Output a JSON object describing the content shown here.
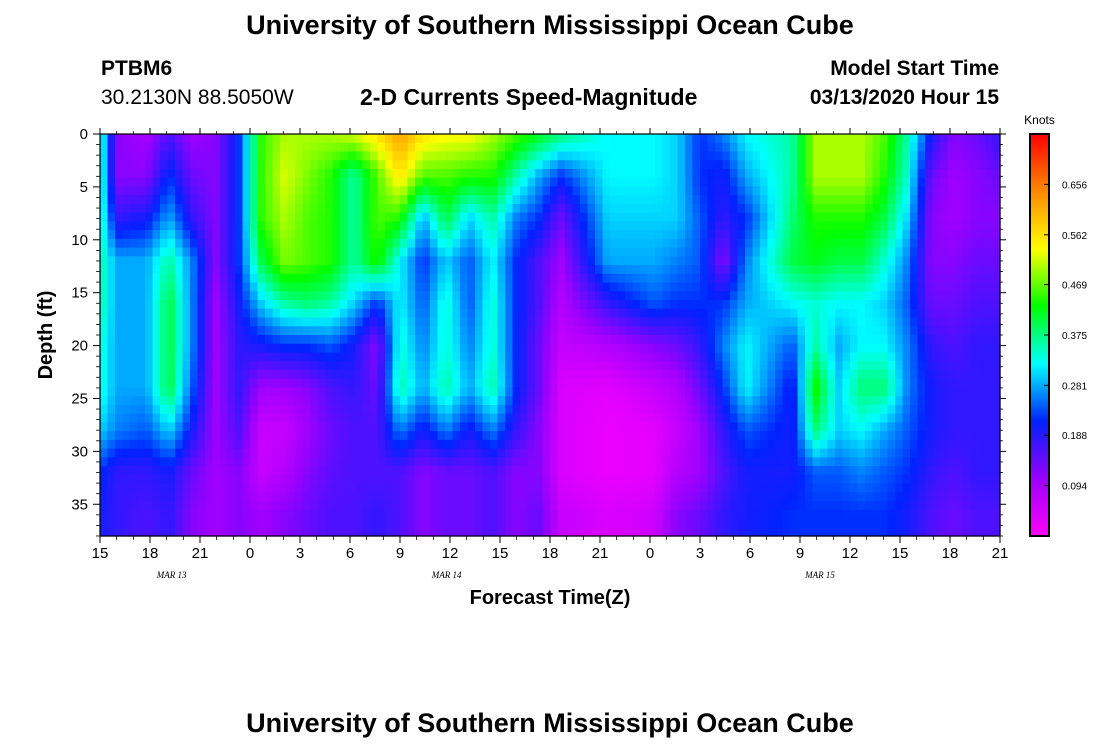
{
  "header": {
    "title": "University of Southern Mississippi Ocean Cube",
    "station": "PTBM6",
    "coords": "30.2130N 88.5050W",
    "subtitle": "2-D Currents Speed-Magnitude",
    "model_start_label": "Model Start Time",
    "model_start_value": "03/13/2020 Hour 15"
  },
  "footer": {
    "title": "University of Southern Mississippi Ocean Cube"
  },
  "chart_data": {
    "type": "heatmap",
    "xlabel": "Forecast Time(Z)",
    "ylabel": "Depth (ft)",
    "x_hours_range": [
      0,
      54
    ],
    "y_range": [
      0,
      38
    ],
    "x_tick_labels": [
      "15",
      "18",
      "21",
      "0",
      "3",
      "6",
      "9",
      "12",
      "15",
      "18",
      "21",
      "0",
      "3",
      "6",
      "9",
      "12",
      "15",
      "18",
      "21"
    ],
    "y_ticks": [
      0,
      5,
      10,
      15,
      20,
      25,
      30,
      35
    ],
    "day_labels": [
      {
        "label": "MAR 13",
        "hour": 4.3
      },
      {
        "label": "MAR 14",
        "hour": 20.8
      },
      {
        "label": "MAR 15",
        "hour": 43.2
      }
    ],
    "colorbar": {
      "unit": "Knots",
      "min": 0,
      "max": 0.75,
      "tick_labels": [
        "0.094",
        "0.188",
        "0.281",
        "0.375",
        "0.469",
        "0.562",
        "0.656"
      ],
      "tick_values": [
        0.094,
        0.188,
        0.281,
        0.375,
        0.469,
        0.562,
        0.656
      ],
      "colors": [
        "#ff00ff",
        "#9900ff",
        "#0022ff",
        "#00ffff",
        "#00ff00",
        "#ffff00",
        "#ff8800",
        "#ff0000"
      ]
    },
    "depths": [
      0,
      4,
      8,
      12,
      16,
      20,
      24,
      28,
      32,
      36,
      38
    ],
    "columns": [
      {
        "t": 0,
        "v": [
          0.36,
          0.36,
          0.36,
          0.36,
          0.36,
          0.34,
          0.34,
          0.3,
          0.22,
          0.2,
          0.2
        ]
      },
      {
        "t": 0.7,
        "v": [
          0.12,
          0.12,
          0.18,
          0.28,
          0.28,
          0.28,
          0.28,
          0.26,
          0.18,
          0.18,
          0.18
        ]
      },
      {
        "t": 2,
        "v": [
          0.09,
          0.12,
          0.2,
          0.28,
          0.28,
          0.28,
          0.28,
          0.24,
          0.18,
          0.16,
          0.16
        ]
      },
      {
        "t": 3,
        "v": [
          0.16,
          0.22,
          0.28,
          0.36,
          0.4,
          0.4,
          0.4,
          0.3,
          0.2,
          0.18,
          0.18
        ]
      },
      {
        "t": 4,
        "v": [
          0.1,
          0.14,
          0.18,
          0.26,
          0.26,
          0.26,
          0.24,
          0.2,
          0.14,
          0.12,
          0.12
        ]
      },
      {
        "t": 5,
        "v": [
          0.12,
          0.12,
          0.12,
          0.12,
          0.1,
          0.1,
          0.1,
          0.1,
          0.1,
          0.1,
          0.1
        ]
      },
      {
        "t": 6,
        "v": [
          0.22,
          0.22,
          0.22,
          0.22,
          0.2,
          0.18,
          0.18,
          0.16,
          0.12,
          0.12,
          0.12
        ]
      },
      {
        "t": 7,
        "v": [
          0.45,
          0.45,
          0.45,
          0.4,
          0.3,
          0.2,
          0.1,
          0.06,
          0.06,
          0.1,
          0.1
        ]
      },
      {
        "t": 8,
        "v": [
          0.5,
          0.52,
          0.5,
          0.48,
          0.36,
          0.22,
          0.1,
          0.06,
          0.08,
          0.12,
          0.12
        ]
      },
      {
        "t": 9,
        "v": [
          0.5,
          0.48,
          0.46,
          0.46,
          0.38,
          0.22,
          0.12,
          0.1,
          0.12,
          0.14,
          0.14
        ]
      },
      {
        "t": 10,
        "v": [
          0.5,
          0.44,
          0.44,
          0.44,
          0.36,
          0.24,
          0.16,
          0.14,
          0.15,
          0.16,
          0.16
        ]
      },
      {
        "t": 11,
        "v": [
          0.52,
          0.36,
          0.36,
          0.36,
          0.3,
          0.2,
          0.18,
          0.16,
          0.16,
          0.16,
          0.16
        ]
      },
      {
        "t": 12,
        "v": [
          0.56,
          0.46,
          0.46,
          0.44,
          0.22,
          0.12,
          0.14,
          0.16,
          0.16,
          0.18,
          0.18
        ]
      },
      {
        "t": 13,
        "v": [
          0.62,
          0.56,
          0.44,
          0.32,
          0.32,
          0.34,
          0.36,
          0.26,
          0.16,
          0.16,
          0.16
        ]
      },
      {
        "t": 14,
        "v": [
          0.56,
          0.46,
          0.28,
          0.22,
          0.24,
          0.26,
          0.28,
          0.2,
          0.12,
          0.12,
          0.12
        ]
      },
      {
        "t": 15,
        "v": [
          0.54,
          0.46,
          0.4,
          0.3,
          0.34,
          0.34,
          0.36,
          0.26,
          0.14,
          0.14,
          0.14
        ]
      },
      {
        "t": 16,
        "v": [
          0.54,
          0.44,
          0.3,
          0.24,
          0.24,
          0.26,
          0.28,
          0.2,
          0.14,
          0.14,
          0.14
        ]
      },
      {
        "t": 17,
        "v": [
          0.5,
          0.44,
          0.36,
          0.32,
          0.34,
          0.34,
          0.36,
          0.26,
          0.16,
          0.16,
          0.16
        ]
      },
      {
        "t": 18,
        "v": [
          0.46,
          0.36,
          0.26,
          0.22,
          0.22,
          0.22,
          0.22,
          0.18,
          0.12,
          0.12,
          0.12
        ]
      },
      {
        "t": 19,
        "v": [
          0.42,
          0.28,
          0.22,
          0.16,
          0.16,
          0.14,
          0.14,
          0.12,
          0.12,
          0.14,
          0.14
        ]
      },
      {
        "t": 20,
        "v": [
          0.38,
          0.22,
          0.14,
          0.1,
          0.08,
          0.06,
          0.04,
          0.04,
          0.04,
          0.06,
          0.06
        ]
      },
      {
        "t": 22,
        "v": [
          0.32,
          0.32,
          0.3,
          0.28,
          0.18,
          0.08,
          0.03,
          0.02,
          0.02,
          0.04,
          0.04
        ]
      },
      {
        "t": 24,
        "v": [
          0.32,
          0.32,
          0.3,
          0.28,
          0.24,
          0.12,
          0.06,
          0.03,
          0.03,
          0.05,
          0.05
        ]
      },
      {
        "t": 25,
        "v": [
          0.3,
          0.3,
          0.3,
          0.26,
          0.22,
          0.14,
          0.08,
          0.06,
          0.08,
          0.12,
          0.12
        ]
      },
      {
        "t": 26,
        "v": [
          0.22,
          0.22,
          0.24,
          0.24,
          0.22,
          0.18,
          0.14,
          0.1,
          0.1,
          0.14,
          0.14
        ]
      },
      {
        "t": 27,
        "v": [
          0.26,
          0.2,
          0.18,
          0.12,
          0.22,
          0.26,
          0.22,
          0.18,
          0.16,
          0.18,
          0.18
        ]
      },
      {
        "t": 28,
        "v": [
          0.32,
          0.28,
          0.22,
          0.26,
          0.28,
          0.32,
          0.32,
          0.24,
          0.2,
          0.2,
          0.2
        ]
      },
      {
        "t": 30,
        "v": [
          0.36,
          0.36,
          0.38,
          0.4,
          0.32,
          0.24,
          0.2,
          0.2,
          0.2,
          0.22,
          0.22
        ]
      },
      {
        "t": 31,
        "v": [
          0.5,
          0.5,
          0.44,
          0.42,
          0.34,
          0.36,
          0.44,
          0.38,
          0.24,
          0.22,
          0.22
        ]
      },
      {
        "t": 32,
        "v": [
          0.5,
          0.5,
          0.44,
          0.4,
          0.32,
          0.28,
          0.3,
          0.3,
          0.24,
          0.22,
          0.22
        ]
      },
      {
        "t": 33,
        "v": [
          0.5,
          0.5,
          0.44,
          0.4,
          0.32,
          0.32,
          0.38,
          0.32,
          0.26,
          0.22,
          0.22
        ]
      },
      {
        "t": 34,
        "v": [
          0.46,
          0.44,
          0.4,
          0.34,
          0.3,
          0.32,
          0.38,
          0.28,
          0.24,
          0.22,
          0.22
        ]
      },
      {
        "t": 35,
        "v": [
          0.36,
          0.34,
          0.3,
          0.26,
          0.24,
          0.26,
          0.26,
          0.24,
          0.22,
          0.2,
          0.2
        ]
      },
      {
        "t": 36,
        "v": [
          0.2,
          0.14,
          0.12,
          0.12,
          0.14,
          0.18,
          0.2,
          0.2,
          0.18,
          0.16,
          0.16
        ]
      },
      {
        "t": 37,
        "v": [
          0.12,
          0.1,
          0.1,
          0.12,
          0.14,
          0.16,
          0.18,
          0.18,
          0.16,
          0.14,
          0.14
        ]
      },
      {
        "t": 38,
        "v": [
          0.14,
          0.12,
          0.12,
          0.14,
          0.16,
          0.18,
          0.18,
          0.18,
          0.18,
          0.16,
          0.16
        ]
      },
      {
        "t": 39,
        "v": [
          0.18,
          0.14,
          0.12,
          0.14,
          0.16,
          0.18,
          0.18,
          0.18,
          0.18,
          0.16,
          0.16
        ]
      }
    ]
  }
}
